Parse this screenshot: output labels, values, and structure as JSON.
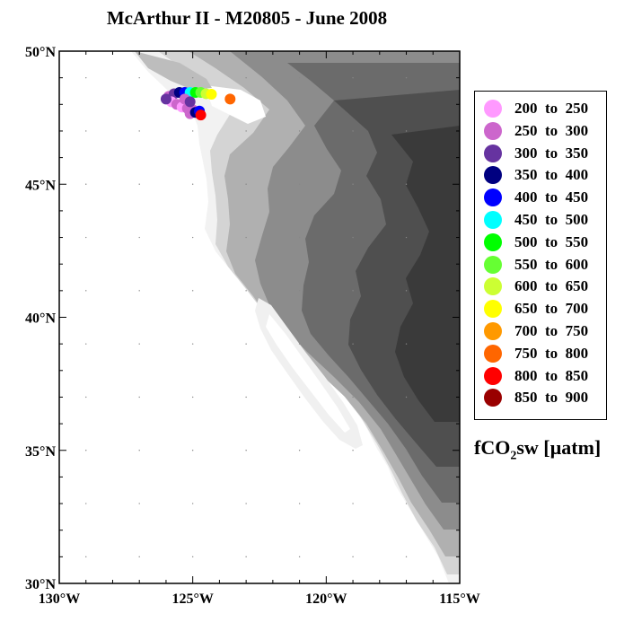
{
  "title": "McArthur II - M20805 - June 2008",
  "map": {
    "lat_axis": [
      "50°N",
      "45°N",
      "40°N",
      "35°N",
      "30°N"
    ],
    "lon_axis": [
      "130°W",
      "125°W",
      "120°W",
      "115°W"
    ],
    "lat_range": [
      30,
      50
    ],
    "lon_range": [
      -130,
      -115
    ],
    "ocean_color": "#ffffff",
    "land_colors": [
      "#f2f2f2",
      "#d9d9d9",
      "#bdbdbd",
      "#9a9a9a",
      "#7a7a7a",
      "#5a5a5a",
      "#3e3e3e"
    ]
  },
  "legend": {
    "unit_main": "fCO",
    "unit_sub": "2",
    "unit_rest": "sw [µatm]",
    "items": [
      {
        "range": "200  to  250",
        "color": "#ff99ff"
      },
      {
        "range": "250  to  300",
        "color": "#cc66cc"
      },
      {
        "range": "300  to  350",
        "color": "#6633a0"
      },
      {
        "range": "350  to  400",
        "color": "#000080"
      },
      {
        "range": "400  to  450",
        "color": "#0000ff"
      },
      {
        "range": "450  to  500",
        "color": "#00ffff"
      },
      {
        "range": "500  to  550",
        "color": "#00ff00"
      },
      {
        "range": "550  to  600",
        "color": "#66ff33"
      },
      {
        "range": "600  to  650",
        "color": "#ccff33"
      },
      {
        "range": "650  to  700",
        "color": "#ffff00"
      },
      {
        "range": "700  to  750",
        "color": "#ff9900"
      },
      {
        "range": "750  to  800",
        "color": "#ff6600"
      },
      {
        "range": "800  to  850",
        "color": "#ff0000"
      },
      {
        "range": "850  to  900",
        "color": "#990000"
      }
    ]
  },
  "track_points": [
    {
      "lon": -125.9,
      "lat": 48.3,
      "fco2": 280
    },
    {
      "lon": -125.7,
      "lat": 48.4,
      "fco2": 330
    },
    {
      "lon": -125.5,
      "lat": 48.45,
      "fco2": 380
    },
    {
      "lon": -125.3,
      "lat": 48.45,
      "fco2": 420
    },
    {
      "lon": -125.1,
      "lat": 48.45,
      "fco2": 470
    },
    {
      "lon": -124.9,
      "lat": 48.45,
      "fco2": 520
    },
    {
      "lon": -124.7,
      "lat": 48.45,
      "fco2": 560
    },
    {
      "lon": -124.5,
      "lat": 48.4,
      "fco2": 620
    },
    {
      "lon": -124.3,
      "lat": 48.38,
      "fco2": 660
    },
    {
      "lon": -123.6,
      "lat": 48.2,
      "fco2": 760
    },
    {
      "lon": -125.8,
      "lat": 48.1,
      "fco2": 240
    },
    {
      "lon": -125.6,
      "lat": 48.0,
      "fco2": 270
    },
    {
      "lon": -125.4,
      "lat": 47.9,
      "fco2": 230
    },
    {
      "lon": -125.2,
      "lat": 47.85,
      "fco2": 290
    },
    {
      "lon": -125.0,
      "lat": 47.8,
      "fco2": 260
    },
    {
      "lon": -125.1,
      "lat": 47.65,
      "fco2": 250
    },
    {
      "lon": -124.9,
      "lat": 47.7,
      "fco2": 390
    },
    {
      "lon": -124.75,
      "lat": 47.75,
      "fco2": 430
    },
    {
      "lon": -124.7,
      "lat": 47.6,
      "fco2": 820
    },
    {
      "lon": -126.0,
      "lat": 48.2,
      "fco2": 300
    },
    {
      "lon": -125.3,
      "lat": 48.2,
      "fco2": 280
    },
    {
      "lon": -125.1,
      "lat": 48.1,
      "fco2": 320
    }
  ]
}
